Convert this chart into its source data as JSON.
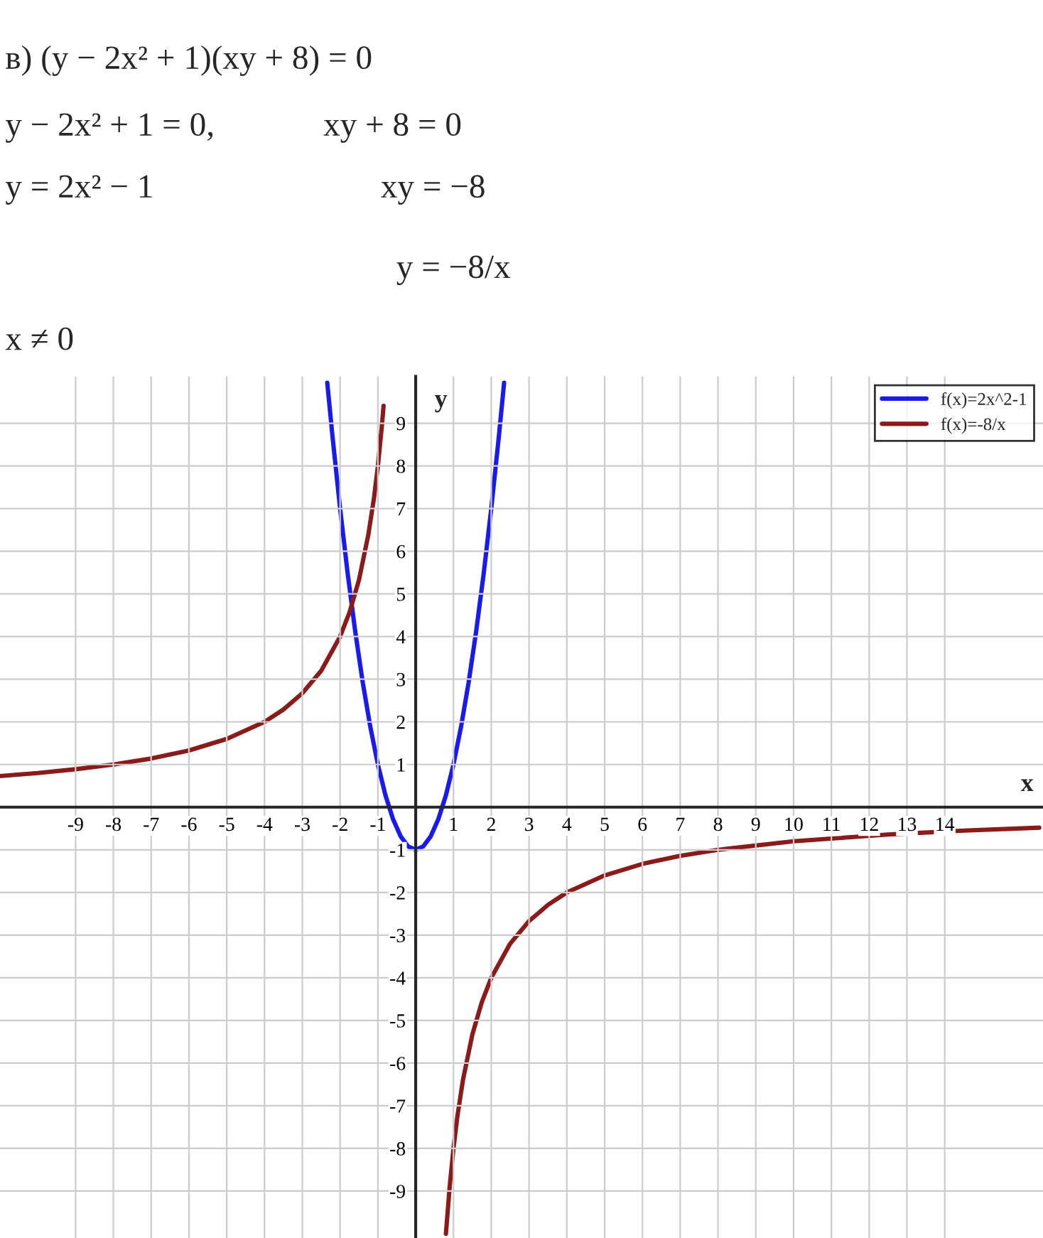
{
  "chart_data": {
    "type": "line",
    "annotations": [
      "в) (y − 2x² + 1)(xy + 8) = 0",
      "y − 2x² + 1 = 0,",
      "xy + 8 = 0",
      "y = 2x² − 1",
      "xy = −8",
      "y = −8/x",
      "x ≠ 0"
    ],
    "xlabel": "x",
    "ylabel": "y",
    "series": [
      {
        "name": "f(x)=2x^2-1",
        "color": "#1a1aee",
        "x": [
          -2.34,
          -2.2,
          -2,
          -1.8,
          -1.6,
          -1.4,
          -1.2,
          -1,
          -0.8,
          -0.6,
          -0.4,
          -0.2,
          0,
          0.2,
          0.4,
          0.6,
          0.8,
          1,
          1.2,
          1.4,
          1.6,
          1.8,
          2,
          2.2,
          2.34
        ],
        "values": [
          9.95,
          8.68,
          7,
          5.48,
          4.12,
          2.92,
          1.88,
          1,
          0.28,
          -0.28,
          -0.68,
          -0.92,
          -1,
          -0.92,
          -0.68,
          -0.28,
          0.28,
          1,
          1.88,
          2.92,
          4.12,
          5.48,
          7,
          8.68,
          9.95
        ]
      },
      {
        "name": "f(x)=-8/x",
        "color": "#8b1a1a",
        "x": [
          -11,
          -10,
          -9,
          -8,
          -7,
          -6,
          -5,
          -4,
          -3.5,
          -3,
          -2.5,
          -2,
          -1.75,
          -1.5,
          -1.25,
          -1.1,
          -1,
          -0.9,
          -0.85,
          0,
          0.8,
          0.9,
          1,
          1.1,
          1.25,
          1.5,
          1.75,
          2,
          2.5,
          3,
          3.5,
          4,
          5,
          6,
          7,
          8,
          10,
          12.5,
          14.5,
          16.5
        ],
        "values": [
          0.73,
          0.8,
          0.89,
          1,
          1.14,
          1.33,
          1.6,
          2,
          2.29,
          2.67,
          3.2,
          4,
          4.57,
          5.33,
          6.4,
          7.27,
          8,
          8.89,
          9.41,
          null,
          -10,
          -8.89,
          -8,
          -7.27,
          -6.4,
          -5.33,
          -4.57,
          -4,
          -3.2,
          -2.67,
          -2.29,
          -2,
          -1.6,
          -1.33,
          -1.14,
          -1,
          -0.8,
          -0.64,
          -0.55,
          -0.48
        ]
      }
    ],
    "xlim": [
      -11,
      16.6
    ],
    "ylim": [
      -10.1,
      10.1
    ],
    "xticks": [
      -9,
      -8,
      -7,
      -6,
      -5,
      -4,
      -3,
      -2,
      -1,
      1,
      2,
      3,
      4,
      5,
      6,
      7,
      8,
      9,
      10,
      11,
      12,
      13,
      14
    ],
    "yticks": [
      -9,
      -8,
      -7,
      -6,
      -5,
      -4,
      -3,
      -2,
      -1,
      1,
      2,
      3,
      4,
      5,
      6,
      7,
      8,
      9
    ],
    "grid": true,
    "legend": "top right",
    "marker": "none",
    "line_style": "solid"
  }
}
